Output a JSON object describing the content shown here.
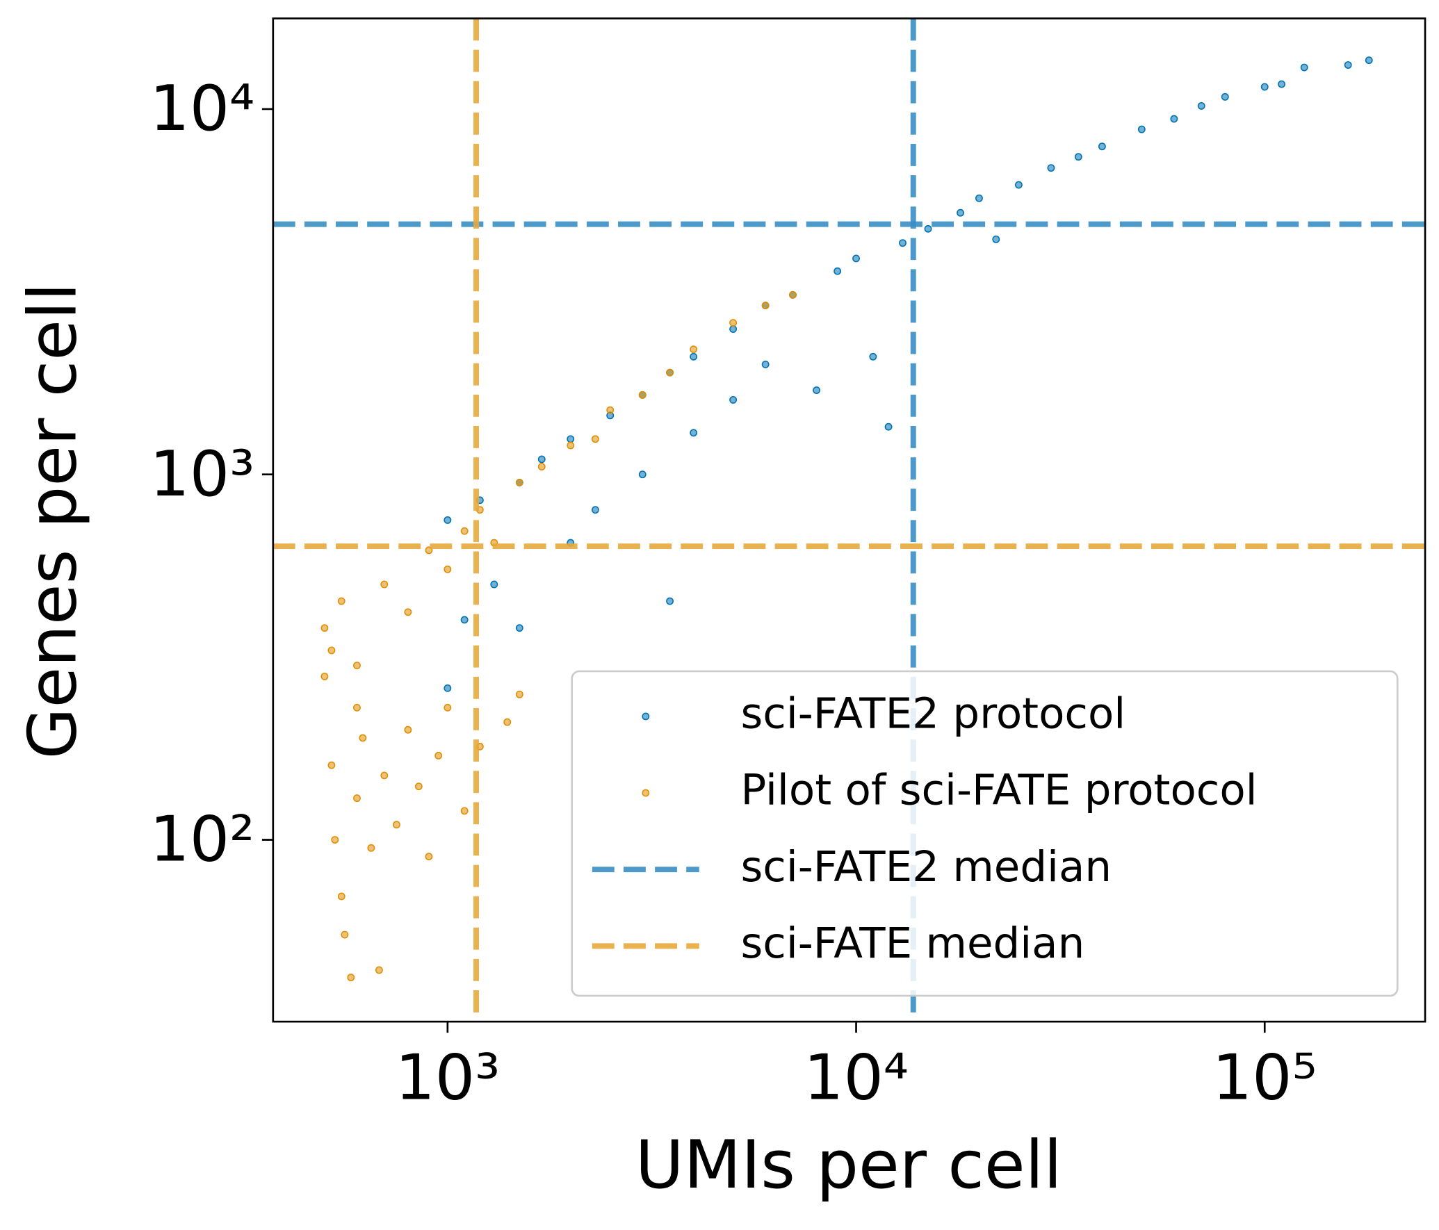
{
  "chart_data": {
    "type": "scatter",
    "x_label": "UMIs per cell",
    "y_label": "Genes per cell",
    "xscale": "log",
    "yscale": "log",
    "xlim": [
      374,
      247000
    ],
    "ylim": [
      31.8,
      17700
    ],
    "xticks": [
      {
        "value": 1000,
        "label": "10³"
      },
      {
        "value": 10000,
        "label": "10⁴"
      },
      {
        "value": 100000,
        "label": "10⁵"
      }
    ],
    "yticks": [
      {
        "value": 100,
        "label": "10²"
      },
      {
        "value": 1000,
        "label": "10³"
      },
      {
        "value": 10000,
        "label": "10⁴"
      }
    ],
    "legend": "lower right",
    "series": [
      {
        "name": "sci-FATE2 protocol",
        "color": "#0173b2",
        "x": [
          1000,
          1000,
          1100,
          1200,
          1300,
          1500,
          1500,
          1700,
          2000,
          2000,
          2300,
          2500,
          3000,
          3000,
          3500,
          3500,
          4000,
          4000,
          5000,
          5000,
          6000,
          6000,
          7000,
          8000,
          9000,
          10000,
          11000,
          12000,
          13000,
          15000,
          18000,
          20000,
          22000,
          25000,
          30000,
          35000,
          40000,
          50000,
          60000,
          70000,
          80000,
          100000,
          110000,
          125000,
          160000,
          180000
        ],
        "y": [
          750,
          260,
          400,
          850,
          500,
          950,
          380,
          1100,
          1250,
          650,
          800,
          1450,
          1650,
          1000,
          1900,
          450,
          2100,
          1300,
          2500,
          1600,
          2900,
          2000,
          3100,
          1700,
          3600,
          3900,
          2100,
          1350,
          4300,
          4700,
          5200,
          5700,
          4400,
          6200,
          6900,
          7400,
          7900,
          8800,
          9400,
          10200,
          10800,
          11500,
          11700,
          13000,
          13200,
          13600
        ]
      },
      {
        "name": "Pilot of sci-FATE protocol",
        "color": "#de8f05",
        "x": [
          500,
          500,
          520,
          550,
          600,
          600,
          700,
          800,
          900,
          1000,
          1100,
          1200,
          1300,
          1500,
          1700,
          2000,
          2300,
          2500,
          3000,
          3500,
          4000,
          5000,
          6000,
          7000,
          520,
          530,
          550,
          560,
          600,
          620,
          650,
          700,
          750,
          800,
          850,
          900,
          950,
          1000,
          1100,
          1200,
          1400,
          1500,
          580,
          680
        ],
        "y": [
          380,
          280,
          330,
          450,
          300,
          230,
          500,
          420,
          620,
          550,
          700,
          800,
          650,
          950,
          1050,
          1200,
          1250,
          1500,
          1650,
          1900,
          2200,
          2600,
          2900,
          3100,
          160,
          100,
          70,
          55,
          130,
          190,
          95,
          150,
          110,
          200,
          140,
          90,
          170,
          230,
          120,
          180,
          210,
          250,
          42,
          44
        ]
      }
    ],
    "median_lines": [
      {
        "name": "sci-FATE2 median",
        "color": "#3a8fc4",
        "x": 13800,
        "y": 4840
      },
      {
        "name": "sci-FATE median",
        "color": "#e8a93c",
        "x": 1175,
        "y": 636
      }
    ]
  }
}
